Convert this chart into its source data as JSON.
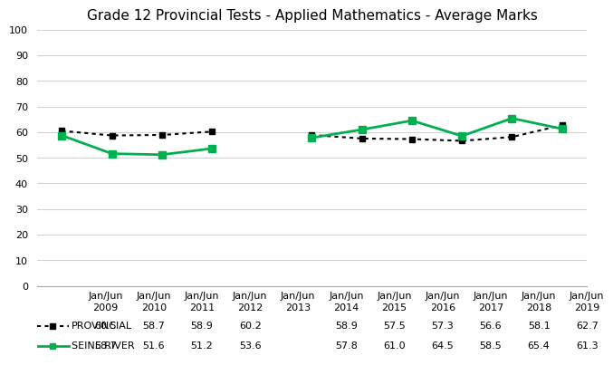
{
  "title": "Grade 12 Provincial Tests - Applied Mathematics - Average Marks",
  "x_labels": [
    "Jan/Jun\n2009",
    "Jan/Jun\n2010",
    "Jan/Jun\n2011",
    "Jan/Jun\n2012",
    "Jan/Jun\n2013",
    "Jan/Jun\n2014",
    "Jan/Jun\n2015",
    "Jan/Jun\n2016",
    "Jan/Jun\n2017",
    "Jan/Jun\n2018",
    "Jan/Jun\n2019"
  ],
  "x_indices": [
    0,
    1,
    2,
    3,
    4,
    5,
    6,
    7,
    8,
    9,
    10
  ],
  "provincial_values": [
    60.5,
    58.7,
    58.9,
    60.2,
    null,
    58.9,
    57.5,
    57.3,
    56.6,
    58.1,
    62.7
  ],
  "seine_river_values": [
    58.7,
    51.6,
    51.2,
    53.6,
    null,
    57.8,
    61.0,
    64.5,
    58.5,
    65.4,
    61.3
  ],
  "provincial_display": [
    "60.5",
    "58.7",
    "58.9",
    "60.2",
    "",
    "58.9",
    "57.5",
    "57.3",
    "56.6",
    "58.1",
    "62.7"
  ],
  "seine_river_display": [
    "58.7",
    "51.6",
    "51.2",
    "53.6",
    "",
    "57.8",
    "61.0",
    "64.5",
    "58.5",
    "65.4",
    "61.3"
  ],
  "provincial_label": "■-PROVINCIAL",
  "seine_river_label": "■-SEINE RIVER",
  "provincial_color": "#000000",
  "seine_river_color": "#00b050",
  "ylim": [
    0,
    100
  ],
  "yticks": [
    0,
    10,
    20,
    30,
    40,
    50,
    60,
    70,
    80,
    90,
    100
  ],
  "background_color": "#ffffff",
  "grid_color": "#d3d3d3",
  "title_fontsize": 11,
  "tick_fontsize": 8,
  "table_fontsize": 8
}
